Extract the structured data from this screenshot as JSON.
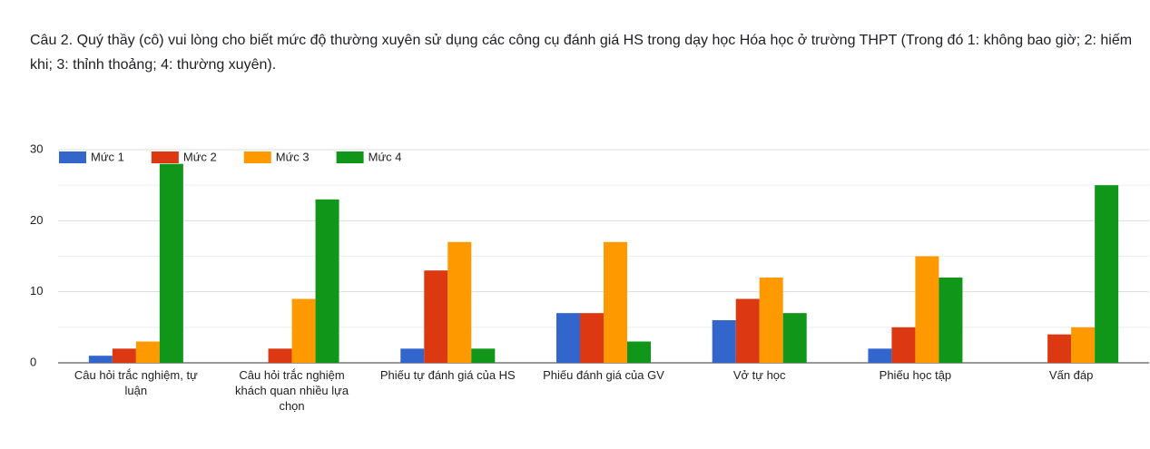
{
  "question": "Câu 2. Quý thầy (cô) vui lòng cho biết mức độ thường xuyên sử dụng các công cụ đánh giá HS trong dạy học Hóa học ở trường THPT (Trong đó 1: không bao giờ; 2: hiếm khi; 3: thỉnh thoảng; 4: thường xuyên).",
  "chart_data": {
    "type": "bar",
    "categories": [
      "Câu hỏi trắc nghiệm, tự luận",
      "Câu hỏi trắc nghiệm khách quan nhiều lựa chọn",
      "Phiếu tự đánh giá của HS",
      "Phiếu đánh giá của GV",
      "Vở tự học",
      "Phiếu học tập",
      "Vấn đáp"
    ],
    "series": [
      {
        "name": "Mức 1",
        "color": "#3366cc",
        "values": [
          1,
          0,
          2,
          7,
          6,
          2,
          0
        ]
      },
      {
        "name": "Mức 2",
        "color": "#dc3912",
        "values": [
          2,
          2,
          13,
          7,
          9,
          5,
          4
        ]
      },
      {
        "name": "Mức 3",
        "color": "#ff9900",
        "values": [
          3,
          9,
          17,
          17,
          12,
          15,
          5
        ]
      },
      {
        "name": "Mức 4",
        "color": "#109618",
        "values": [
          28,
          23,
          2,
          3,
          7,
          12,
          25
        ]
      }
    ],
    "ylim": [
      0,
      30
    ],
    "yticks": [
      0,
      10,
      20,
      30
    ],
    "minor_yticks": [
      5,
      15,
      25
    ],
    "grid": true,
    "legend": "top-left"
  }
}
